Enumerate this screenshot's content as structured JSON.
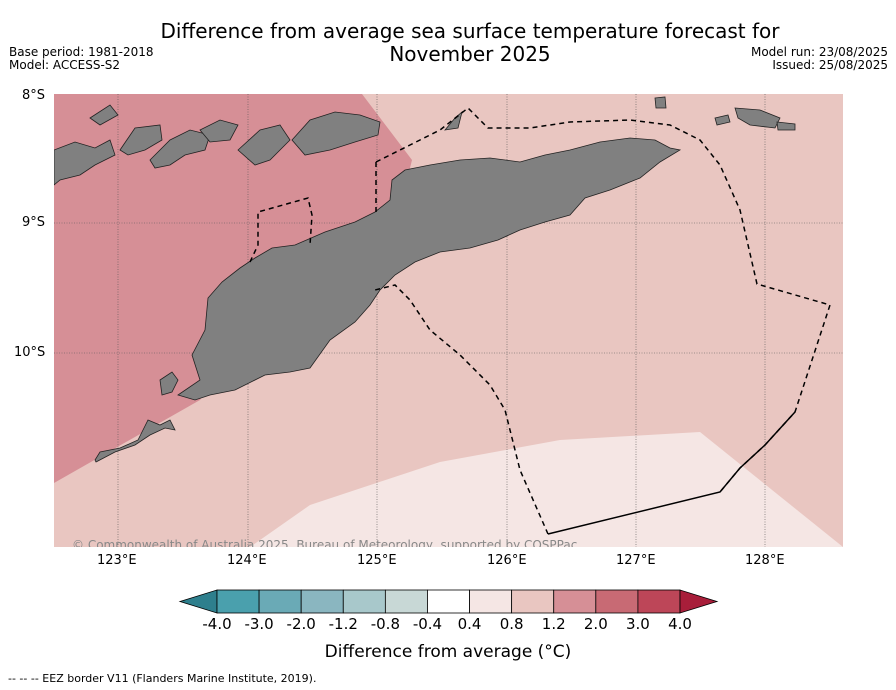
{
  "title_line1": "Difference from average sea surface temperature forecast for",
  "title_line2": "November 2025",
  "base_period": "Base period: 1981-2018",
  "model": "Model: ACCESS-S2",
  "model_run": "Model run: 23/08/2025",
  "issued": "Issued: 25/08/2025",
  "lat_labels": [
    "8°S",
    "9°S",
    "10°S"
  ],
  "lon_labels": [
    "123°E",
    "124°E",
    "125°E",
    "126°E",
    "127°E",
    "128°E"
  ],
  "copyright": "© Commonwealth of Australia 2025, Bureau of Meteorology, supported by COSPPac",
  "colorbar": {
    "ticks": [
      "-4.0",
      "-3.0",
      "-2.0",
      "-1.2",
      "-0.8",
      "-0.4",
      "0.4",
      "0.8",
      "1.2",
      "2.0",
      "3.0",
      "4.0"
    ],
    "colors": [
      "#2e7f8d",
      "#4aa0ad",
      "#6aaab6",
      "#8ab6c0",
      "#a8c8cb",
      "#c8d8d6",
      "#ffffff",
      "#f5e6e4",
      "#e9c6c1",
      "#d68f96",
      "#c86a74",
      "#bd4658",
      "#a81e3a"
    ],
    "label": "Difference from average (°C)"
  },
  "legend_note": "--  --  -- EEZ border V11 (Flanders Marine Institute, 2019).",
  "colors": {
    "land": "#808080",
    "anomaly_2_3": "#d68f96",
    "anomaly_1_2": "#e9c6c1",
    "anomaly_04_08": "#f5e6e4"
  }
}
